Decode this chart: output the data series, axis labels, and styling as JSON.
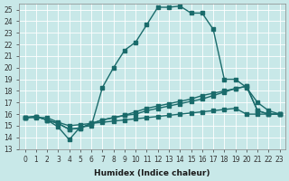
{
  "xlabel": "Humidex (Indice chaleur)",
  "ylabel": "",
  "xlim": [
    -0.5,
    23.5
  ],
  "ylim": [
    13,
    25.5
  ],
  "yticks": [
    13,
    14,
    15,
    16,
    17,
    18,
    19,
    20,
    21,
    22,
    23,
    24,
    25
  ],
  "xticks": [
    0,
    1,
    2,
    3,
    4,
    5,
    6,
    7,
    8,
    9,
    10,
    11,
    12,
    13,
    14,
    15,
    16,
    17,
    18,
    19,
    20,
    21,
    22,
    23
  ],
  "bg_color": "#c8e8e8",
  "line_color": "#1a6b6b",
  "grid_color": "#ffffff",
  "line1_x": [
    0,
    1,
    2,
    3,
    4,
    5,
    6,
    7,
    8,
    9,
    10,
    11,
    12,
    13,
    14,
    15,
    16,
    17,
    18,
    19,
    20,
    21,
    22,
    23
  ],
  "line1_y": [
    15.7,
    15.8,
    15.5,
    14.9,
    13.8,
    14.9,
    15.0,
    18.3,
    20.0,
    21.5,
    22.2,
    23.7,
    25.2,
    25.2,
    25.3,
    24.7,
    24.7,
    23.3,
    19.0,
    19.0,
    18.3,
    17.0,
    16.3,
    16.0
  ],
  "line2_x": [
    0,
    1,
    2,
    3,
    4,
    5,
    6,
    7,
    8,
    9,
    10,
    11,
    12,
    13,
    14,
    15,
    16,
    17,
    18,
    19,
    20,
    21,
    22,
    23
  ],
  "line2_y": [
    15.7,
    15.8,
    15.5,
    15.2,
    14.7,
    14.8,
    15.2,
    15.5,
    15.7,
    15.9,
    16.0,
    16.3,
    16.5,
    16.7,
    16.9,
    17.1,
    17.3,
    17.6,
    17.9,
    18.2,
    18.4,
    16.3,
    16.0,
    16.0
  ],
  "line3_x": [
    0,
    1,
    2,
    3,
    4,
    5,
    6,
    7,
    8,
    9,
    10,
    11,
    12,
    13,
    14,
    15,
    16,
    17,
    18,
    19,
    20,
    21,
    22,
    23
  ],
  "line3_y": [
    15.7,
    15.8,
    15.5,
    15.2,
    14.7,
    14.8,
    15.2,
    15.5,
    15.7,
    15.9,
    16.2,
    16.5,
    16.7,
    16.9,
    17.1,
    17.3,
    17.6,
    17.8,
    18.0,
    18.2,
    18.4,
    16.3,
    16.0,
    16.0
  ],
  "line4_x": [
    0,
    1,
    2,
    3,
    4,
    5,
    6,
    7,
    8,
    9,
    10,
    11,
    12,
    13,
    14,
    15,
    16,
    17,
    18,
    19,
    20,
    21,
    22,
    23
  ],
  "line4_y": [
    15.7,
    15.7,
    15.7,
    15.3,
    15.0,
    15.1,
    15.2,
    15.3,
    15.4,
    15.5,
    15.6,
    15.7,
    15.8,
    15.9,
    16.0,
    16.1,
    16.2,
    16.3,
    16.4,
    16.5,
    16.0,
    16.0,
    16.0,
    16.0
  ]
}
